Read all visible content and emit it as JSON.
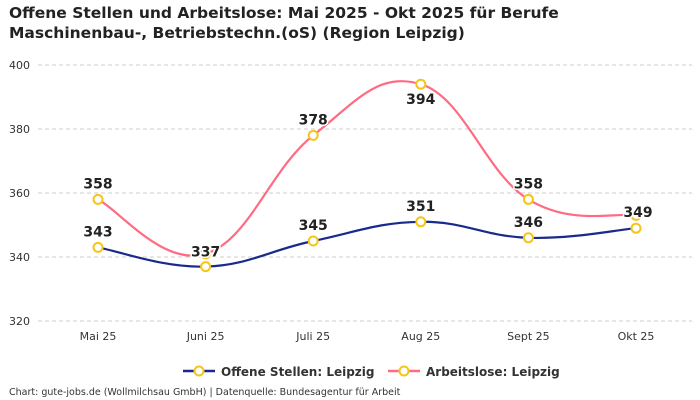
{
  "chart_data": {
    "type": "line",
    "title": "Offene Stellen und Arbeitslose: Mai 2025 - Okt 2025 für Berufe Maschinenbau-, Betriebstechn.(oS) (Region Leipzig)",
    "categories": [
      "Mai 25",
      "Juni 25",
      "Juli 25",
      "Aug 25",
      "Sept 25",
      "Okt 25"
    ],
    "ylim": [
      320,
      400
    ],
    "yticks": [
      320,
      340,
      360,
      380,
      400
    ],
    "grid": true,
    "legend_position": "bottom",
    "series": [
      {
        "name": "Offene Stellen: Leipzig",
        "color": "#1a2a8c",
        "values": [
          343,
          337,
          345,
          351,
          346,
          349
        ],
        "labels_visible": [
          true,
          true,
          true,
          true,
          true,
          true
        ]
      },
      {
        "name": "Arbeitslose: Leipzig",
        "color": "#ff6b81",
        "values": [
          358,
          341,
          378,
          394,
          358,
          353
        ],
        "labels_visible": [
          true,
          false,
          true,
          true,
          true,
          false
        ]
      }
    ],
    "marker_color": "#f5c518"
  },
  "footer": "Chart: gute-jobs.de (Wollmilchsau GmbH) | Datenquelle: Bundesagentur für Arbeit"
}
